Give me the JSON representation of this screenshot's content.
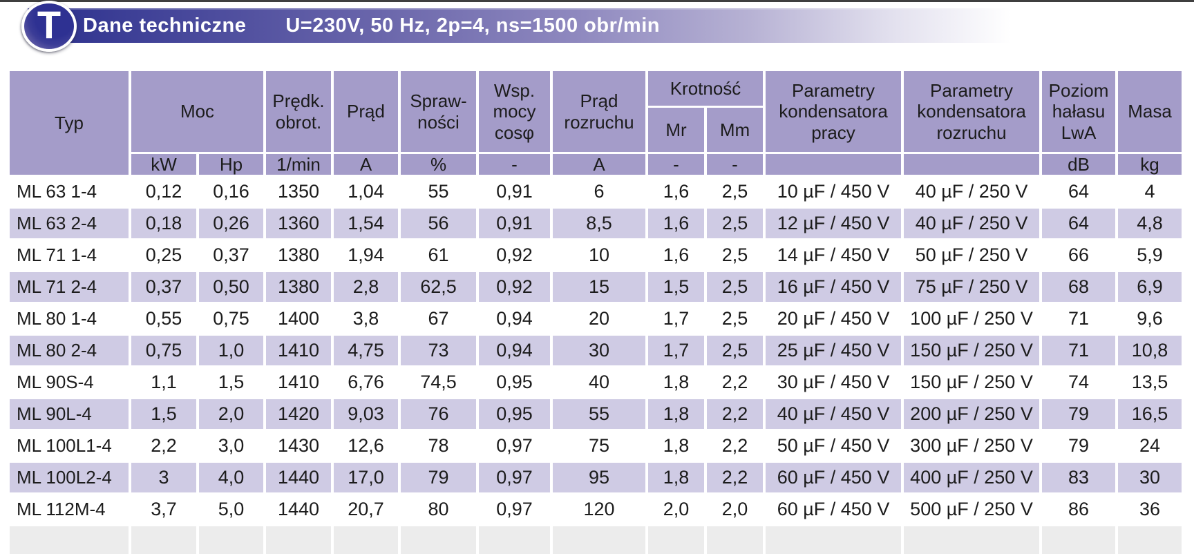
{
  "header": {
    "logo_letter": "T",
    "title": "Dane techniczne",
    "subtitle": "U=230V, 50 Hz, 2p=4, ns=1500 obr/min"
  },
  "colors": {
    "bar_start": "#2b2f8c",
    "bar_mid": "#8f89bf",
    "bar_end": "#ffffff",
    "table_header_bg": "#a49cc9",
    "row_shaded_bg": "#cfcbe4",
    "row_plain_bg": "#ffffff",
    "text": "#1c1c1c"
  },
  "table": {
    "head": {
      "typ": "Typ",
      "moc": "Moc",
      "predk_obrot": "Prędk.\nobrot.",
      "prad": "Prąd",
      "sprawnosci": "Spraw-\nności",
      "wsp_mocy": "Wsp.\nmocy\ncosφ",
      "prad_rozruchu": "Prąd\nrozruchu",
      "krotnosc": "Krotność",
      "mr": "Mr",
      "mm": "Mm",
      "kond_pracy": "Parametry\nkondensatora\npracy",
      "kond_rozruchu": "Parametry\nkondensatora\nrozruchu",
      "poziom": "Poziom\nhałasu\nLwA",
      "masa": "Masa"
    },
    "units": [
      "kW",
      "Hp",
      "1/min",
      "A",
      "%",
      "-",
      "A",
      "-",
      "-",
      "",
      "",
      "dB",
      "kg"
    ],
    "rows": [
      [
        "ML 63 1-4",
        "0,12",
        "0,16",
        "1350",
        "1,04",
        "55",
        "0,91",
        "6",
        "1,6",
        "2,5",
        "10 µF / 450 V",
        "40 µF / 250 V",
        "64",
        "4"
      ],
      [
        "ML 63 2-4",
        "0,18",
        "0,26",
        "1360",
        "1,54",
        "56",
        "0,91",
        "8,5",
        "1,6",
        "2,5",
        "12 µF / 450 V",
        "40 µF / 250 V",
        "64",
        "4,8"
      ],
      [
        "ML 71 1-4",
        "0,25",
        "0,37",
        "1380",
        "1,94",
        "61",
        "0,92",
        "10",
        "1,6",
        "2,5",
        "14 µF / 450 V",
        "50 µF / 250 V",
        "66",
        "5,9"
      ],
      [
        "ML 71 2-4",
        "0,37",
        "0,50",
        "1380",
        "2,8",
        "62,5",
        "0,92",
        "15",
        "1,5",
        "2,5",
        "16 µF / 450 V",
        "75 µF / 250 V",
        "68",
        "6,9"
      ],
      [
        "ML 80 1-4",
        "0,55",
        "0,75",
        "1400",
        "3,8",
        "67",
        "0,94",
        "20",
        "1,7",
        "2,5",
        "20 µF / 450 V",
        "100 µF / 250 V",
        "71",
        "9,6"
      ],
      [
        "ML 80 2-4",
        "0,75",
        "1,0",
        "1410",
        "4,75",
        "73",
        "0,94",
        "30",
        "1,7",
        "2,5",
        "25 µF / 450 V",
        "150 µF / 250 V",
        "71",
        "10,8"
      ],
      [
        "ML 90S-4",
        "1,1",
        "1,5",
        "1410",
        "6,76",
        "74,5",
        "0,95",
        "40",
        "1,8",
        "2,2",
        "30 µF / 450 V",
        "150 µF / 250 V",
        "74",
        "13,5"
      ],
      [
        "ML 90L-4",
        "1,5",
        "2,0",
        "1420",
        "9,03",
        "76",
        "0,95",
        "55",
        "1,8",
        "2,2",
        "40 µF / 450 V",
        "200 µF / 250 V",
        "79",
        "16,5"
      ],
      [
        "ML 100L1-4",
        "2,2",
        "3,0",
        "1430",
        "12,6",
        "78",
        "0,97",
        "75",
        "1,8",
        "2,2",
        "50 µF / 450 V",
        "300 µF / 250 V",
        "79",
        "24"
      ],
      [
        "ML 100L2-4",
        "3",
        "4,0",
        "1440",
        "17,0",
        "79",
        "0,97",
        "95",
        "1,8",
        "2,2",
        "60 µF / 450 V",
        "400 µF / 250 V",
        "83",
        "30"
      ],
      [
        "ML 112M-4",
        "3,7",
        "5,0",
        "1440",
        "20,7",
        "80",
        "0,97",
        "120",
        "2,0",
        "2,0",
        "60 µF / 450 V",
        "500 µF / 250 V",
        "86",
        "36"
      ]
    ]
  }
}
